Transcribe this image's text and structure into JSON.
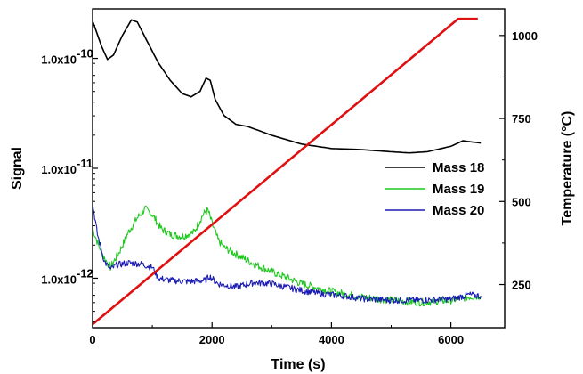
{
  "chart_data": {
    "type": "line",
    "xlabel": "Time (s)",
    "ylabel_left": "Signal",
    "ylabel_right_prefix": "Temperature (",
    "ylabel_right_unit": "°C",
    "ylabel_right_suffix": ")",
    "xlim": [
      0,
      6900
    ],
    "ylim_left_log10": [
      -12.45,
      -9.55
    ],
    "ylim_right": [
      120,
      1080
    ],
    "y_left_scale": "log",
    "x_ticks": [
      0,
      2000,
      4000,
      6000
    ],
    "x_tick_labels": [
      "0",
      "2000",
      "4000",
      "6000"
    ],
    "y_left_ticks_log10": [
      -10,
      -11,
      -12
    ],
    "y_left_tick_labels": [
      "1.0x10",
      "1.0x10",
      "1.0x10"
    ],
    "y_left_tick_exponents": [
      "-10",
      "-11",
      "-12"
    ],
    "y_right_ticks": [
      1000,
      750,
      500,
      250
    ],
    "y_right_tick_labels": [
      "1000",
      "750",
      "500",
      "250"
    ],
    "legend_position": "center-right",
    "grid": false,
    "series": [
      {
        "name": "Mass 18",
        "color": "#000000",
        "axis": "left",
        "noise": 0,
        "x": [
          0,
          60,
          150,
          250,
          350,
          500,
          650,
          750,
          900,
          1100,
          1300,
          1500,
          1650,
          1800,
          1900,
          1970,
          2050,
          2200,
          2400,
          2600,
          3000,
          3500,
          4000,
          4500,
          5000,
          5300,
          5600,
          6000,
          6200,
          6500
        ],
        "log10_y": [
          -9.66,
          -9.75,
          -9.89,
          -10.01,
          -9.97,
          -9.79,
          -9.65,
          -9.67,
          -9.83,
          -10.04,
          -10.2,
          -10.32,
          -10.35,
          -10.3,
          -10.18,
          -10.2,
          -10.37,
          -10.52,
          -10.6,
          -10.62,
          -10.7,
          -10.78,
          -10.82,
          -10.83,
          -10.85,
          -10.86,
          -10.85,
          -10.8,
          -10.75,
          -10.77
        ]
      },
      {
        "name": "Mass 19",
        "color": "#1ec81e",
        "axis": "left",
        "noise": 0.035,
        "x": [
          0,
          100,
          200,
          300,
          450,
          600,
          750,
          880,
          1000,
          1150,
          1300,
          1500,
          1700,
          1850,
          1930,
          2000,
          2100,
          2200,
          2400,
          2700,
          3000,
          3500,
          4000,
          4500,
          5000,
          5500,
          6000,
          6300,
          6500
        ],
        "log10_y": [
          -11.55,
          -11.7,
          -11.82,
          -11.9,
          -11.76,
          -11.58,
          -11.45,
          -11.37,
          -11.42,
          -11.55,
          -11.6,
          -11.62,
          -11.58,
          -11.42,
          -11.38,
          -11.5,
          -11.65,
          -11.72,
          -11.78,
          -11.87,
          -11.94,
          -12.05,
          -12.12,
          -12.17,
          -12.2,
          -12.22,
          -12.2,
          -12.17,
          -12.16
        ]
      },
      {
        "name": "Mass 20",
        "color": "#1a1ab4",
        "axis": "left",
        "noise": 0.03,
        "x": [
          0,
          80,
          200,
          300,
          400,
          600,
          800,
          1000,
          1100,
          1300,
          1600,
          1900,
          1950,
          2100,
          2400,
          2700,
          3000,
          3400,
          3800,
          4200,
          4600,
          5000,
          5500,
          6000,
          6300,
          6500
        ],
        "log10_y": [
          -11.32,
          -11.6,
          -11.85,
          -11.92,
          -11.88,
          -11.86,
          -11.87,
          -11.9,
          -12.0,
          -12.02,
          -12.03,
          -12.02,
          -11.98,
          -12.05,
          -12.08,
          -12.04,
          -12.05,
          -12.1,
          -12.14,
          -12.16,
          -12.19,
          -12.2,
          -12.2,
          -12.19,
          -12.15,
          -12.16
        ]
      },
      {
        "name": "",
        "color": "#e01010",
        "axis": "right",
        "noise": 0,
        "x": [
          0,
          6120,
          6450
        ],
        "y": [
          130,
          1050,
          1050
        ]
      }
    ]
  }
}
